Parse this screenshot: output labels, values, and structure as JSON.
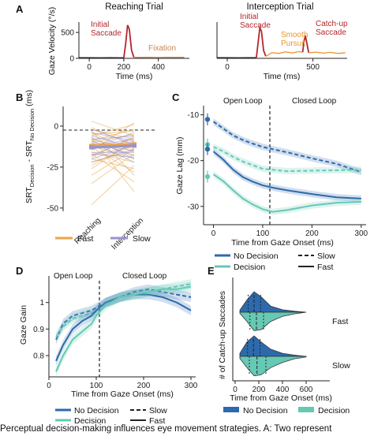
{
  "caption": "Perceptual decision-making influences eye movement strategies. A: Two represent",
  "colors": {
    "saccade": "#b5262d",
    "pursuit": "#e8962e",
    "fixation": "#c9864a",
    "trace": "#222222",
    "no_decision": "#2d6aad",
    "decision": "#66c9b4",
    "slow": "#9a93cc",
    "fast": "#e8a64a"
  },
  "chart_data": [
    {
      "panel": "A",
      "type": "line",
      "title": "Reaching Trial",
      "xlabel": "Time (ms)",
      "ylabel": "Gaze Velocity (°/s)",
      "xticks": [
        0,
        200,
        400
      ],
      "yticks": [
        0,
        500
      ],
      "xlim": [
        -60,
        580
      ],
      "ylim": [
        0,
        700
      ],
      "annotations": [
        "Initial Saccade",
        "Fixation"
      ],
      "series": [
        {
          "segment": "baseline",
          "x": [
            -60,
            0,
            60,
            120,
            180,
            200
          ],
          "y": [
            12,
            14,
            10,
            13,
            11,
            12
          ]
        },
        {
          "segment": "saccade",
          "x": [
            200,
            210,
            222,
            232,
            245,
            258
          ],
          "y": [
            12,
            260,
            640,
            560,
            160,
            20
          ]
        },
        {
          "segment": "fixation",
          "x": [
            258,
            300,
            350,
            400,
            450,
            500,
            550
          ],
          "y": [
            20,
            18,
            22,
            17,
            21,
            18,
            20
          ]
        }
      ]
    },
    {
      "panel": "A",
      "type": "line",
      "title": "Interception Trial",
      "xlabel": "Time (ms)",
      "ylabel": "",
      "xticks": [
        0,
        500
      ],
      "yticks": [],
      "xlim": [
        -60,
        700
      ],
      "ylim": [
        0,
        700
      ],
      "annotations": [
        "Initial Saccade",
        "Smooth Pursuit",
        "Catch-up Saccade"
      ],
      "series": [
        {
          "segment": "baseline",
          "x": [
            -60,
            0,
            60,
            120,
            170
          ],
          "y": [
            12,
            13,
            10,
            14,
            12
          ]
        },
        {
          "segment": "initial saccade",
          "x": [
            170,
            180,
            190,
            200,
            212,
            225
          ],
          "y": [
            12,
            300,
            590,
            520,
            150,
            40
          ]
        },
        {
          "segment": "smooth pursuit",
          "x": [
            225,
            260,
            300,
            340,
            380,
            420,
            440
          ],
          "y": [
            40,
            110,
            95,
            125,
            105,
            130,
            120
          ]
        },
        {
          "segment": "catch-up saccade",
          "x": [
            440,
            448,
            456,
            464,
            475
          ],
          "y": [
            120,
            330,
            440,
            300,
            110
          ]
        },
        {
          "segment": "smooth pursuit",
          "x": [
            475,
            520,
            560,
            600,
            650,
            690
          ],
          "y": [
            110,
            120,
            100,
            115,
            95,
            110
          ]
        }
      ]
    },
    {
      "panel": "B",
      "type": "line",
      "title": "",
      "xlabel": "",
      "ylabel": "SRT Decision - SRT No Decision (ms)",
      "categories": [
        "Reaching",
        "Interception"
      ],
      "yticks": [
        0,
        -25,
        -50
      ],
      "ylim": [
        -52,
        12
      ],
      "legend": [
        "Fast",
        "Slow"
      ],
      "series": [
        {
          "name": "Fast",
          "values": [
            -12,
            -11
          ]
        },
        {
          "name": "Slow",
          "values": [
            -13,
            -12
          ]
        }
      ]
    },
    {
      "panel": "C",
      "type": "line",
      "title": "",
      "xlabel": "Time from Gaze Onset (ms)",
      "ylabel": "Gaze Lag (mm)",
      "xticks": [
        0,
        100,
        200,
        300
      ],
      "yticks": [
        -10,
        -20,
        -30
      ],
      "xlim": [
        -20,
        310
      ],
      "ylim": [
        -34,
        -8
      ],
      "annotations": [
        "Open Loop",
        "Closed Loop"
      ],
      "legend": [
        "No Decision",
        "Decision",
        "Slow",
        "Fast"
      ],
      "x": [
        0,
        20,
        40,
        60,
        80,
        100,
        120,
        150,
        200,
        250,
        300
      ],
      "series": [
        {
          "group": "No Decision",
          "speed": "Slow",
          "values": [
            -11.5,
            -13,
            -14.5,
            -15.5,
            -16.3,
            -17,
            -17.5,
            -18.2,
            -19.5,
            -20.7,
            -22.5
          ]
        },
        {
          "group": "Decision",
          "speed": "Slow",
          "values": [
            -17,
            -18,
            -19.2,
            -20.2,
            -21,
            -21.8,
            -22,
            -22.3,
            -22.2,
            -22.1,
            -22
          ]
        },
        {
          "group": "No Decision",
          "speed": "Fast",
          "values": [
            -18,
            -19.8,
            -22,
            -23.6,
            -24.6,
            -25.4,
            -25.9,
            -26.5,
            -27.3,
            -28,
            -28.3
          ]
        },
        {
          "group": "Decision",
          "speed": "Fast",
          "values": [
            -23,
            -24.5,
            -26.5,
            -28.3,
            -29.6,
            -30.6,
            -31.2,
            -30.8,
            -29.8,
            -29.2,
            -29
          ]
        }
      ],
      "onset_markers": [
        {
          "group": "No Decision",
          "speed": "Slow",
          "y": -11
        },
        {
          "group": "Decision",
          "speed": "Slow",
          "y": -16.5
        },
        {
          "group": "No Decision",
          "speed": "Fast",
          "y": -17.5
        },
        {
          "group": "Decision",
          "speed": "Fast",
          "y": -23.5
        }
      ]
    },
    {
      "panel": "D",
      "type": "line",
      "title": "",
      "xlabel": "Time from Gaze Onset (ms)",
      "ylabel": "Gaze Gain",
      "xticks": [
        0,
        100,
        200,
        300
      ],
      "yticks": [
        0.8,
        0.9,
        1.0
      ],
      "xlim": [
        0,
        310
      ],
      "ylim": [
        0.72,
        1.1
      ],
      "annotations": [
        "Open Loop",
        "Closed Loop"
      ],
      "legend": [
        "No Decision",
        "Decision",
        "Slow",
        "Fast"
      ],
      "x": [
        15,
        30,
        50,
        70,
        90,
        100,
        120,
        150,
        180,
        210,
        240,
        270,
        300
      ],
      "series": [
        {
          "group": "No Decision",
          "speed": "Slow",
          "values": [
            0.86,
            0.92,
            0.95,
            0.96,
            0.97,
            0.98,
            1.0,
            1.02,
            1.04,
            1.05,
            1.04,
            1.03,
            1.02
          ]
        },
        {
          "group": "Decision",
          "speed": "Slow",
          "values": [
            0.87,
            0.91,
            0.94,
            0.95,
            0.96,
            0.97,
            1.0,
            1.02,
            1.03,
            1.04,
            1.05,
            1.06,
            1.07
          ]
        },
        {
          "group": "No Decision",
          "speed": "Fast",
          "values": [
            0.78,
            0.84,
            0.9,
            0.93,
            0.95,
            0.97,
            1.0,
            1.02,
            1.03,
            1.03,
            1.02,
            1.0,
            0.97
          ]
        },
        {
          "group": "Decision",
          "speed": "Fast",
          "values": [
            0.74,
            0.8,
            0.86,
            0.89,
            0.92,
            0.95,
            0.99,
            1.02,
            1.03,
            1.04,
            1.05,
            1.05,
            1.06
          ]
        }
      ]
    },
    {
      "panel": "E",
      "type": "violin",
      "title": "",
      "xlabel": "Time from Gaze Onset (ms)",
      "ylabel": "# of Catch-up Saccades",
      "xticks": [
        0,
        200,
        400,
        600
      ],
      "xlim": [
        -20,
        800
      ],
      "categories": [
        "Fast",
        "Slow"
      ],
      "legend": [
        "No Decision",
        "Decision"
      ],
      "x": [
        40,
        100,
        160,
        220,
        300,
        400,
        500,
        600
      ],
      "violins": [
        {
          "category": "Fast",
          "no_decision_density": [
            0.1,
            0.6,
            1.0,
            0.75,
            0.3,
            0.12,
            0.05,
            0.0
          ],
          "decision_density": [
            0.05,
            0.45,
            0.9,
            0.85,
            0.45,
            0.2,
            0.08,
            0.0
          ],
          "quartiles_no_decision": [
            110,
            160,
            215
          ],
          "quartiles_decision": [
            125,
            180,
            240
          ]
        },
        {
          "category": "Slow",
          "no_decision_density": [
            0.15,
            0.7,
            1.0,
            0.7,
            0.35,
            0.15,
            0.06,
            0.0
          ],
          "decision_density": [
            0.1,
            0.55,
            0.95,
            0.9,
            0.55,
            0.3,
            0.12,
            0.03
          ],
          "quartiles_no_decision": [
            105,
            155,
            210
          ],
          "quartiles_decision": [
            120,
            185,
            260
          ]
        }
      ]
    }
  ]
}
